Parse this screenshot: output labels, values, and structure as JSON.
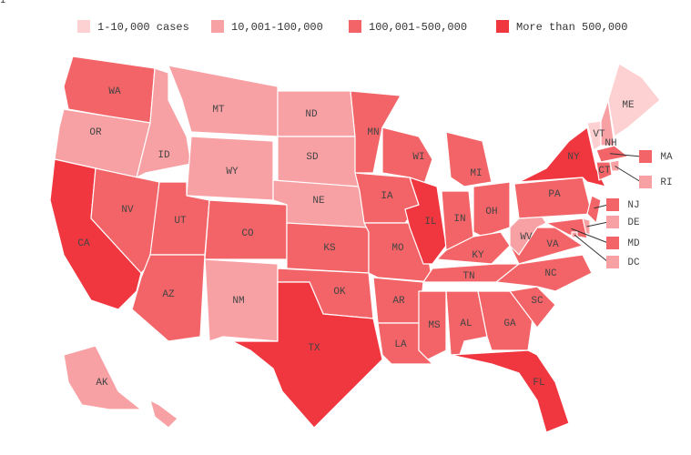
{
  "legend": {
    "items": [
      {
        "label": "1-10,000 cases",
        "color": "#fdd0d1"
      },
      {
        "label": "10,001-100,000",
        "color": "#f8a1a4"
      },
      {
        "label": "100,001-500,000",
        "color": "#f26467"
      },
      {
        "label": "More than 500,000",
        "color": "#f0373f"
      }
    ]
  },
  "states": [
    {
      "label": "WA",
      "category": 2
    },
    {
      "label": "OR",
      "category": 1
    },
    {
      "label": "CA",
      "category": 3
    },
    {
      "label": "NV",
      "category": 2
    },
    {
      "label": "ID",
      "category": 1
    },
    {
      "label": "MT",
      "category": 1
    },
    {
      "label": "WY",
      "category": 1
    },
    {
      "label": "UT",
      "category": 2
    },
    {
      "label": "AZ",
      "category": 2
    },
    {
      "label": "CO",
      "category": 2
    },
    {
      "label": "NM",
      "category": 1
    },
    {
      "label": "ND",
      "category": 1
    },
    {
      "label": "SD",
      "category": 1
    },
    {
      "label": "NE",
      "category": 1
    },
    {
      "label": "KS",
      "category": 2
    },
    {
      "label": "OK",
      "category": 2
    },
    {
      "label": "TX",
      "category": 3
    },
    {
      "label": "MN",
      "category": 2
    },
    {
      "label": "IA",
      "category": 2
    },
    {
      "label": "MO",
      "category": 2
    },
    {
      "label": "AR",
      "category": 2
    },
    {
      "label": "LA",
      "category": 2
    },
    {
      "label": "WI",
      "category": 2
    },
    {
      "label": "IL",
      "category": 3
    },
    {
      "label": "MI",
      "category": 2
    },
    {
      "label": "IN",
      "category": 2
    },
    {
      "label": "OH",
      "category": 2
    },
    {
      "label": "KY",
      "category": 2
    },
    {
      "label": "TN",
      "category": 2
    },
    {
      "label": "MS",
      "category": 2
    },
    {
      "label": "AL",
      "category": 2
    },
    {
      "label": "GA",
      "category": 2
    },
    {
      "label": "FL",
      "category": 3
    },
    {
      "label": "SC",
      "category": 2
    },
    {
      "label": "NC",
      "category": 2
    },
    {
      "label": "VA",
      "category": 2
    },
    {
      "label": "WV",
      "category": 1
    },
    {
      "label": "PA",
      "category": 2
    },
    {
      "label": "NY",
      "category": 3
    },
    {
      "label": "VT",
      "category": 0
    },
    {
      "label": "NH",
      "category": 1
    },
    {
      "label": "ME",
      "category": 0
    },
    {
      "label": "MA",
      "category": 2
    },
    {
      "label": "RI",
      "category": 1
    },
    {
      "label": "CT",
      "category": 2
    },
    {
      "label": "NJ",
      "category": 2
    },
    {
      "label": "DE",
      "category": 1
    },
    {
      "label": "MD",
      "category": 2
    },
    {
      "label": "DC",
      "category": 1
    },
    {
      "label": "AK",
      "category": 1
    },
    {
      "label": "HI",
      "category": 1
    }
  ]
}
